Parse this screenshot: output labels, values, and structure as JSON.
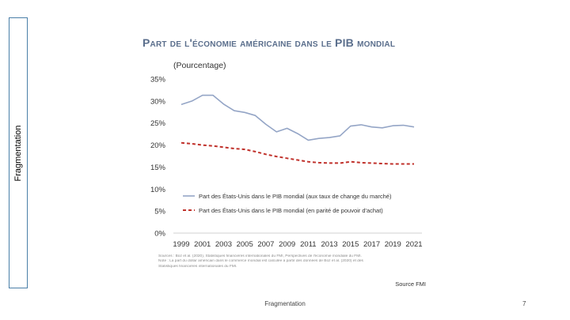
{
  "slide": {
    "side_label": "Fragmentation",
    "footer": "Fragmentation",
    "page_number": "7"
  },
  "chart_data": {
    "type": "line",
    "title": "Part de l'économie américaine dans le PIB mondial",
    "subtitle": "(Pourcentage)",
    "ylim": [
      0,
      35
    ],
    "y_ticks": [
      "0%",
      "5%",
      "10%",
      "15%",
      "20%",
      "25%",
      "30%",
      "35%"
    ],
    "x_ticks": [
      "1999",
      "2001",
      "2003",
      "2005",
      "2007",
      "2009",
      "2011",
      "2013",
      "2015",
      "2017",
      "2019",
      "2021"
    ],
    "x": [
      1999,
      2000,
      2001,
      2002,
      2003,
      2004,
      2005,
      2006,
      2007,
      2008,
      2009,
      2010,
      2011,
      2012,
      2013,
      2014,
      2015,
      2016,
      2017,
      2018,
      2019,
      2020,
      2021
    ],
    "series": [
      {
        "name": "Part des États-Unis dans le PIB mondial (aux taux de change du marché)",
        "color": "#94a5c6",
        "style": "solid",
        "values": [
          29.2,
          30.0,
          31.3,
          31.3,
          29.3,
          27.8,
          27.4,
          26.7,
          24.7,
          23.0,
          23.8,
          22.6,
          21.1,
          21.5,
          21.7,
          22.1,
          24.3,
          24.6,
          24.1,
          23.9,
          24.4,
          24.5,
          24.1
        ]
      },
      {
        "name": "Part des États-Unis dans le PIB mondial (en parité de pouvoir d'achat)",
        "color": "#c0312b",
        "style": "dashed",
        "values": [
          20.5,
          20.3,
          20.0,
          19.8,
          19.5,
          19.2,
          19.0,
          18.5,
          17.9,
          17.4,
          17.0,
          16.6,
          16.2,
          16.0,
          15.9,
          15.9,
          16.2,
          16.0,
          15.9,
          15.8,
          15.7,
          15.7,
          15.7
        ]
      }
    ],
    "notes": [
      "Sources : Boz et al. (2020), Statistiques financières internationales du FMI, Perspectives de l'économie mondiale du FMI.",
      "Note : La part du dollar américain dans le commerce mondial est calculée à partir des données de Boz et al. (2020) et des",
      "Statistiques financières internationales du FMI."
    ],
    "source": "Source FMI"
  }
}
